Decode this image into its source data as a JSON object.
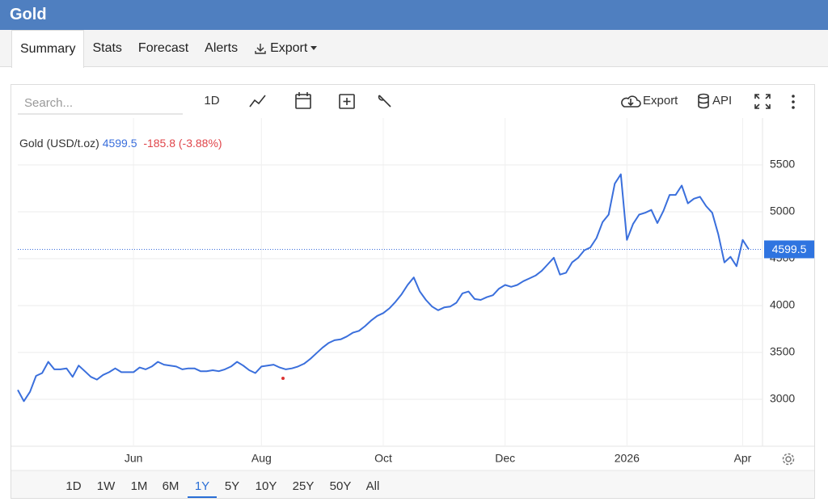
{
  "header": {
    "title": "Gold"
  },
  "tabs": [
    "Summary",
    "Stats",
    "Forecast",
    "Alerts",
    "Export"
  ],
  "active_tab": "Summary",
  "toolbar": {
    "search_placeholder": "Search...",
    "interval": "1D",
    "export": "Export",
    "api": "API"
  },
  "ranges": [
    "1D",
    "1W",
    "1M",
    "6M",
    "1Y",
    "5Y",
    "10Y",
    "25Y",
    "50Y",
    "All"
  ],
  "active_range": "1Y",
  "chart_data": {
    "type": "line",
    "change_label": "-185.8 (-3.88%)",
    "categories": [
      null,
      null,
      null,
      null,
      null,
      null,
      null,
      null,
      null,
      null,
      null,
      null,
      null,
      null,
      null,
      null,
      null,
      null,
      null,
      "Jun",
      null,
      null,
      null,
      null,
      null,
      null,
      null,
      null,
      null,
      null,
      null,
      null,
      null,
      null,
      null,
      null,
      null,
      null,
      null,
      null,
      "Aug",
      null,
      null,
      null,
      null,
      null,
      null,
      null,
      null,
      null,
      null,
      null,
      null,
      null,
      null,
      null,
      null,
      null,
      null,
      null,
      "Oct",
      null,
      null,
      null,
      null,
      null,
      null,
      null,
      null,
      null,
      null,
      null,
      null,
      null,
      null,
      null,
      null,
      null,
      null,
      null,
      "Dec",
      null,
      null,
      null,
      null,
      null,
      null,
      null,
      null,
      null,
      null,
      null,
      null,
      null,
      null,
      null,
      null,
      null,
      null,
      null,
      "2026",
      null,
      null,
      null,
      null,
      null,
      null,
      null,
      null,
      null,
      null,
      null,
      null,
      null,
      null,
      null,
      null,
      null,
      null,
      "Apr",
      null
    ],
    "series": [
      {
        "name": "Gold (USD/t.oz)",
        "color": "#3a6fdc",
        "values": [
          3100,
          2980,
          3080,
          3250,
          3280,
          3400,
          3320,
          3320,
          3330,
          3240,
          3360,
          3300,
          3240,
          3210,
          3260,
          3290,
          3330,
          3290,
          3290,
          3290,
          3340,
          3320,
          3350,
          3400,
          3370,
          3360,
          3350,
          3320,
          3330,
          3330,
          3300,
          3300,
          3310,
          3300,
          3320,
          3350,
          3400,
          3360,
          3310,
          3280,
          3350,
          3360,
          3370,
          3340,
          3320,
          3330,
          3350,
          3380,
          3430,
          3490,
          3550,
          3600,
          3630,
          3640,
          3670,
          3710,
          3730,
          3780,
          3840,
          3890,
          3920,
          3970,
          4040,
          4120,
          4220,
          4300,
          4150,
          4060,
          3990,
          3950,
          3980,
          3990,
          4030,
          4130,
          4150,
          4070,
          4060,
          4090,
          4110,
          4180,
          4220,
          4200,
          4220,
          4260,
          4290,
          4320,
          4370,
          4440,
          4510,
          4330,
          4350,
          4460,
          4510,
          4590,
          4620,
          4720,
          4890,
          4970,
          5300,
          5400,
          4700,
          4870,
          4970,
          4990,
          5020,
          4880,
          5010,
          5180,
          5180,
          5280,
          5090,
          5140,
          5160,
          5060,
          4990,
          4760,
          4460,
          4520,
          4420,
          4700,
          4599.5
        ]
      }
    ],
    "ylim": [
      2500,
      6000
    ],
    "yticks": [
      3000,
      3500,
      4000,
      4500,
      5000,
      5500
    ],
    "grid": true
  }
}
